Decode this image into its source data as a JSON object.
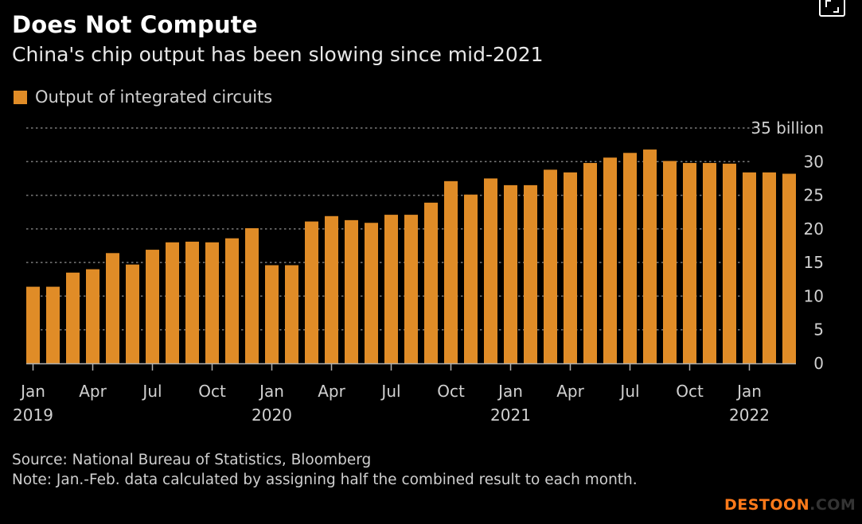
{
  "header": {
    "title": "Does Not Compute",
    "subtitle": "China's chip output has been slowing since mid-2021",
    "expand_icon": "expand-icon"
  },
  "legend": {
    "label": "Output of integrated circuits",
    "color": "#e08c27"
  },
  "footer": {
    "source": "Source: National Bureau of Statistics, Bloomberg",
    "note": "Note: Jan.-Feb. data calculated by assigning half the combined result to each month."
  },
  "watermark": {
    "part1": "DESTOON",
    "part2": ".COM"
  },
  "chart_data": {
    "type": "bar",
    "title": "Does Not Compute",
    "subtitle": "China's chip output has been slowing since mid-2021",
    "xlabel": "",
    "ylabel": "billion",
    "ylim": [
      0,
      35
    ],
    "yticks": [
      0,
      5,
      10,
      15,
      20,
      25,
      30,
      35
    ],
    "ytick_labels": [
      "0",
      "5",
      "10",
      "15",
      "20",
      "25",
      "30",
      "35 billion"
    ],
    "grid": true,
    "legend_position": "top-left",
    "series": [
      {
        "name": "Output of integrated circuits",
        "color": "#e08c27",
        "values": [
          11.4,
          11.4,
          13.5,
          14.0,
          16.4,
          14.7,
          16.9,
          18.0,
          18.1,
          18.0,
          18.6,
          20.1,
          14.6,
          14.6,
          21.1,
          21.9,
          21.3,
          20.9,
          22.1,
          22.1,
          23.9,
          27.1,
          25.1,
          27.5,
          26.5,
          26.5,
          28.8,
          28.4,
          29.8,
          30.6,
          31.3,
          31.8,
          30.1,
          29.8,
          29.8,
          29.7,
          28.4,
          28.4,
          28.2
        ]
      }
    ],
    "categories": [
      "2019-01",
      "2019-02",
      "2019-03",
      "2019-04",
      "2019-05",
      "2019-06",
      "2019-07",
      "2019-08",
      "2019-09",
      "2019-10",
      "2019-11",
      "2019-12",
      "2020-01",
      "2020-02",
      "2020-03",
      "2020-04",
      "2020-05",
      "2020-06",
      "2020-07",
      "2020-08",
      "2020-09",
      "2020-10",
      "2020-11",
      "2020-12",
      "2021-01",
      "2021-02",
      "2021-03",
      "2021-04",
      "2021-05",
      "2021-06",
      "2021-07",
      "2021-08",
      "2021-09",
      "2021-10",
      "2021-11",
      "2021-12",
      "2022-01",
      "2022-02",
      "2022-03"
    ],
    "xticks": [
      {
        "index": 0,
        "label": "Jan",
        "year": "2019"
      },
      {
        "index": 3,
        "label": "Apr",
        "year": ""
      },
      {
        "index": 6,
        "label": "Jul",
        "year": ""
      },
      {
        "index": 9,
        "label": "Oct",
        "year": ""
      },
      {
        "index": 12,
        "label": "Jan",
        "year": "2020"
      },
      {
        "index": 15,
        "label": "Apr",
        "year": ""
      },
      {
        "index": 18,
        "label": "Jul",
        "year": ""
      },
      {
        "index": 21,
        "label": "Oct",
        "year": ""
      },
      {
        "index": 24,
        "label": "Jan",
        "year": "2021"
      },
      {
        "index": 27,
        "label": "Apr",
        "year": ""
      },
      {
        "index": 30,
        "label": "Jul",
        "year": ""
      },
      {
        "index": 33,
        "label": "Oct",
        "year": ""
      },
      {
        "index": 36,
        "label": "Jan",
        "year": "2022"
      }
    ]
  }
}
